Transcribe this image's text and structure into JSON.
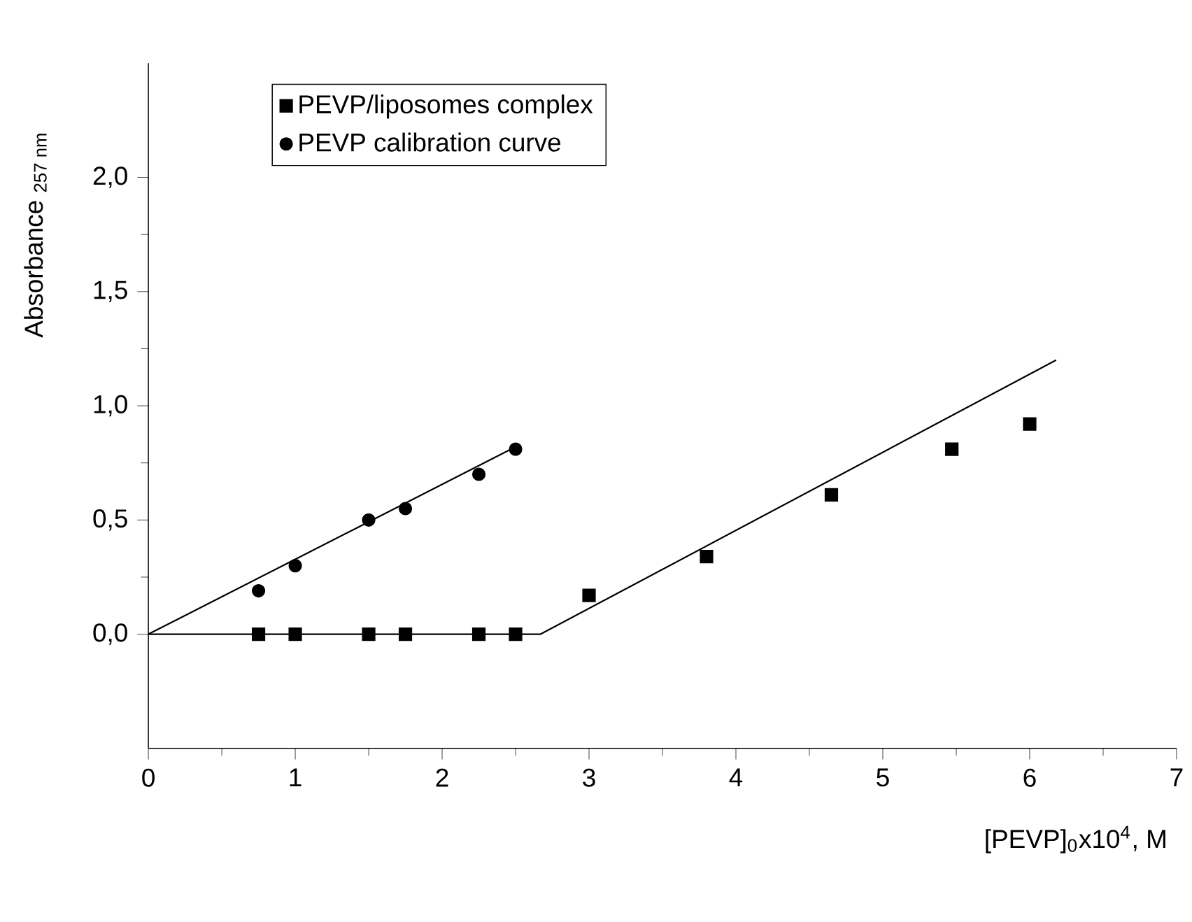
{
  "chart_data": {
    "type": "scatter",
    "xlabel": "[PEVP]$_{0}$x10$^{4}$, M",
    "ylabel": "Absorbance $_{257 nm}$",
    "xlim": [
      0,
      7
    ],
    "ylim": [
      -0.5,
      2.5
    ],
    "xticks": [
      0,
      1,
      2,
      3,
      4,
      5,
      6,
      7
    ],
    "yticks": [
      {
        "value": 0,
        "label": "0,0"
      },
      {
        "value": 0.5,
        "label": "0,5"
      },
      {
        "value": 1,
        "label": "1,0"
      },
      {
        "value": 1.5,
        "label": "1,5"
      },
      {
        "value": 2,
        "label": "2,0"
      }
    ],
    "legend": "top left",
    "grid": false,
    "series": [
      {
        "name": "PEVP/liposomes complex",
        "marker": "square",
        "color": "#000000",
        "x": [
          0.75,
          1,
          1.5,
          1.75,
          2.25,
          2.5,
          3.0,
          3.8,
          4.65,
          5.47,
          6.0
        ],
        "values": [
          0,
          0,
          0,
          0,
          0,
          0,
          0.17,
          0.34,
          0.61,
          0.81,
          0.92
        ]
      },
      {
        "name": "PEVP calibration curve",
        "marker": "circle",
        "color": "#000000",
        "x": [
          0.75,
          1,
          1.5,
          1.75,
          2.25,
          2.5
        ],
        "values": [
          0.19,
          0.3,
          0.5,
          0.55,
          0.7,
          0.81
        ]
      },
      {
        "type": "line",
        "marker": "none",
        "color": "#000000",
        "x": [
          0,
          2.5
        ],
        "values": [
          0,
          0.82
        ]
      },
      {
        "type": "line",
        "marker": "none",
        "color": "#000000",
        "x": [
          0,
          2.67,
          6.18
        ],
        "values": [
          0,
          0,
          1.2
        ]
      }
    ]
  }
}
